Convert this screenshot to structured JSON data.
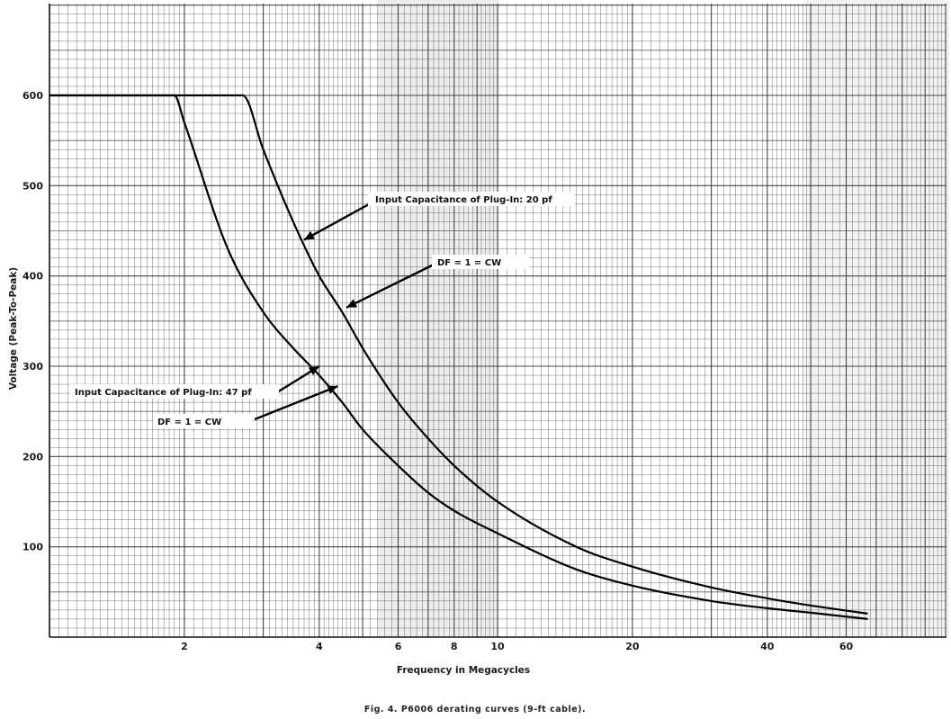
{
  "chart_data": {
    "type": "line",
    "xscale": "log",
    "title": "",
    "caption": "Fig. 4. P6006 derating curves (9-ft cable).",
    "xlabel": "Frequency in Megacycles",
    "ylabel": "Voltage (Peak-To-Peak)",
    "xlim": [
      1,
      100
    ],
    "ylim": [
      0,
      700
    ],
    "x_ticks": [
      2,
      4,
      6,
      8,
      10,
      20,
      40,
      60
    ],
    "y_ticks": [
      100,
      200,
      300,
      400,
      500,
      600
    ],
    "series": [
      {
        "name": "Input Capacitance of Plug-In: 20 pf",
        "x": [
          1.0,
          2.7,
          3.0,
          3.5,
          4.0,
          4.5,
          5.0,
          6.0,
          7.0,
          8.0,
          10.0,
          15.0,
          20.0,
          30.0,
          40.0,
          50.0,
          67.0
        ],
        "y": [
          600,
          600,
          540,
          460,
          400,
          360,
          320,
          260,
          220,
          190,
          150,
          100,
          78,
          55,
          43,
          35,
          26
        ]
      },
      {
        "name": "Input Capacitance of Plug-In: 47 pf",
        "x": [
          1.0,
          1.9,
          2.0,
          2.5,
          3.0,
          3.5,
          4.0,
          4.5,
          5.0,
          6.0,
          7.0,
          8.0,
          10.0,
          15.0,
          20.0,
          30.0,
          40.0,
          50.0,
          67.0
        ],
        "y": [
          600,
          600,
          570,
          430,
          360,
          320,
          290,
          260,
          230,
          190,
          160,
          140,
          115,
          75,
          57,
          40,
          32,
          27,
          20
        ]
      }
    ],
    "annotations": [
      {
        "text": "Input Capacitance of Plug-In: 20 pf",
        "target": [
          3.7,
          440
        ]
      },
      {
        "text": "DF = 1 = CW",
        "target": [
          4.6,
          365
        ]
      },
      {
        "text": "Input Capacitance of Plug-In: 47 pf",
        "target": [
          4.0,
          300
        ]
      },
      {
        "text": "DF = 1 = CW",
        "target": [
          4.4,
          278
        ]
      }
    ]
  }
}
